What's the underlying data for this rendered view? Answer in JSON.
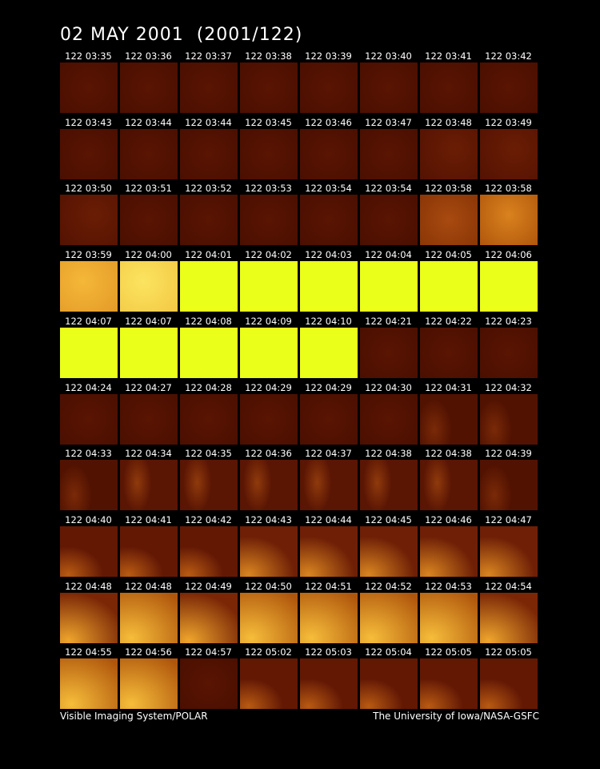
{
  "title": "02 MAY 2001  (2001/122)",
  "rows": [
    [
      "122 03:35",
      "122 03:36",
      "122 03:37",
      "122 03:38",
      "122 03:39",
      "122 03:40",
      "122 03:41",
      "122 03:42"
    ],
    [
      "122 03:43",
      "122 03:44",
      "122 03:44",
      "122 03:45",
      "122 03:46",
      "122 03:47",
      "122 03:48",
      "122 03:49"
    ],
    [
      "122 03:50",
      "122 03:51",
      "122 03:52",
      "122 03:53",
      "122 03:54",
      "122 03:54",
      "122 03:58",
      "122 03:58"
    ],
    [
      "122 03:59",
      "122 04:00",
      "122 04:01",
      "122 04:02",
      "122 04:03",
      "122 04:04",
      "122 04:05",
      "122 04:06"
    ],
    [
      "122 04:07",
      "122 04:07",
      "122 04:08",
      "122 04:09",
      "122 04:10",
      "122 04:21",
      "122 04:22",
      "122 04:23"
    ],
    [
      "122 04:24",
      "122 04:27",
      "122 04:28",
      "122 04:29",
      "122 04:29",
      "122 04:30",
      "122 04:31",
      "122 04:32"
    ],
    [
      "122 04:33",
      "122 04:34",
      "122 04:35",
      "122 04:36",
      "122 04:37",
      "122 04:38",
      "122 04:38",
      "122 04:39"
    ],
    [
      "122 04:40",
      "122 04:41",
      "122 04:42",
      "122 04:43",
      "122 04:44",
      "122 04:45",
      "122 04:46",
      "122 04:47"
    ],
    [
      "122 04:48",
      "122 04:48",
      "122 04:49",
      "122 04:50",
      "122 04:51",
      "122 04:52",
      "122 04:53",
      "122 04:54"
    ],
    [
      "122 04:55",
      "122 04:56",
      "122 04:57",
      "122 05:02",
      "122 05:03",
      "122 05:04",
      "122 05:05",
      "122 05:05"
    ]
  ],
  "footer": {
    "left": "Visible Imaging System/POLAR",
    "right": "The University of Iowa/NASA-GSFC"
  }
}
